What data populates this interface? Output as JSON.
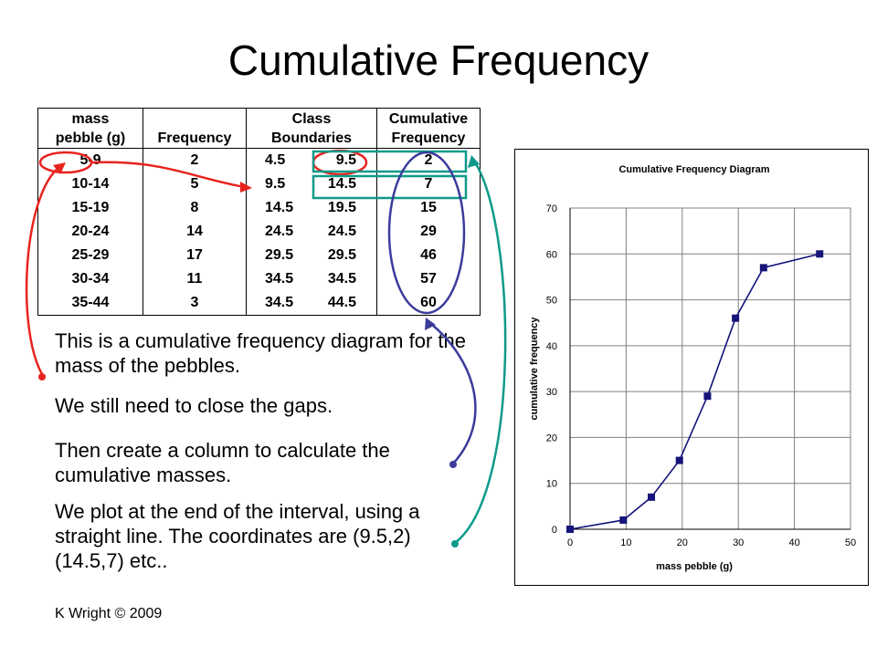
{
  "title": "Cumulative Frequency",
  "table": {
    "headers": {
      "mass_line1": "mass",
      "mass_line2": "pebble (g)",
      "frequency": "Frequency",
      "boundaries_line1": "Class",
      "boundaries_line2": "Boundaries",
      "cumulative_line1": "Cumulative",
      "cumulative_line2": "Frequency"
    },
    "rows": [
      {
        "mass": "5-9",
        "frequency": "2",
        "lower": "4.5",
        "upper": "9.5",
        "cumulative": "2"
      },
      {
        "mass": "10-14",
        "frequency": "5",
        "lower": "9.5",
        "upper": "14.5",
        "cumulative": "7"
      },
      {
        "mass": "15-19",
        "frequency": "8",
        "lower": "14.5",
        "upper": "19.5",
        "cumulative": "15"
      },
      {
        "mass": "20-24",
        "frequency": "14",
        "lower": "24.5",
        "upper": "24.5",
        "cumulative": "29"
      },
      {
        "mass": "25-29",
        "frequency": "17",
        "lower": "29.5",
        "upper": "29.5",
        "cumulative": "46"
      },
      {
        "mass": "30-34",
        "frequency": "11",
        "lower": "34.5",
        "upper": "34.5",
        "cumulative": "57"
      },
      {
        "mass": "35-44",
        "frequency": "3",
        "lower": "34.5",
        "upper": "44.5",
        "cumulative": "60"
      }
    ]
  },
  "text": {
    "para1": "This is a cumulative frequency diagram for the mass of the pebbles.",
    "para2": "We still need to close the gaps.",
    "para3": "Then create a column to calculate the cumulative masses.",
    "para4": "We plot at the end of the interval, using a straight line. The coordinates are (9.5,2) (14.5,7) etc..",
    "footer": "K Wright © 2009"
  },
  "colors": {
    "red_arrow": "#e8231f",
    "blue_arrow": "#3b3b9c",
    "teal_arrow": "#0e9a8a",
    "series": "#14147a"
  },
  "chart_data": {
    "type": "line",
    "title": "Cumulative Frequency Diagram",
    "xlabel": "mass pebble (g)",
    "ylabel": "cumulative frequency",
    "xlim": [
      0,
      50
    ],
    "ylim": [
      0,
      70
    ],
    "xticks": [
      0,
      10,
      20,
      30,
      40,
      50
    ],
    "yticks": [
      0,
      10,
      20,
      30,
      40,
      50,
      60,
      70
    ],
    "grid": true,
    "x": [
      0,
      9.5,
      14.5,
      19.5,
      24.5,
      29.5,
      34.5,
      44.5
    ],
    "y": [
      0,
      2,
      7,
      15,
      29,
      46,
      57,
      60
    ],
    "marker": "square"
  }
}
